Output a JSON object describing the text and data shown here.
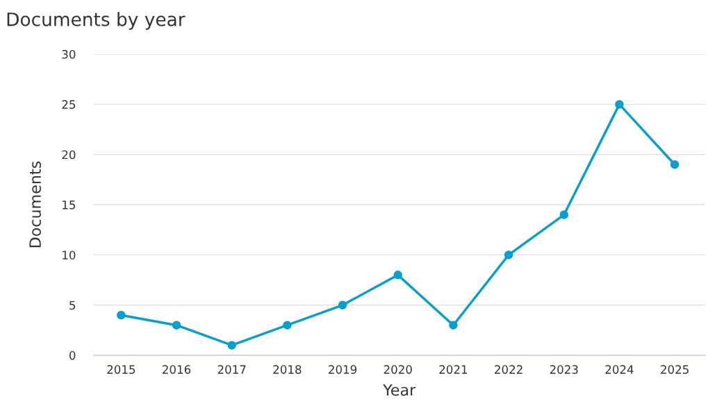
{
  "chart_data": {
    "type": "line",
    "title": "Documents by year",
    "xlabel": "Year",
    "ylabel": "Documents",
    "categories": [
      "2015",
      "2016",
      "2017",
      "2018",
      "2019",
      "2020",
      "2021",
      "2022",
      "2023",
      "2024",
      "2025"
    ],
    "series": [
      {
        "color": "#0a9ecf",
        "values": [
          4,
          3,
          1,
          3,
          5,
          8,
          3,
          10,
          14,
          25,
          19
        ]
      }
    ],
    "ylim": [
      0,
      30
    ],
    "yticks": [
      0,
      5,
      10,
      15,
      20,
      25,
      30
    ],
    "grid": "y",
    "marker": "circle",
    "line_style": "solid"
  }
}
